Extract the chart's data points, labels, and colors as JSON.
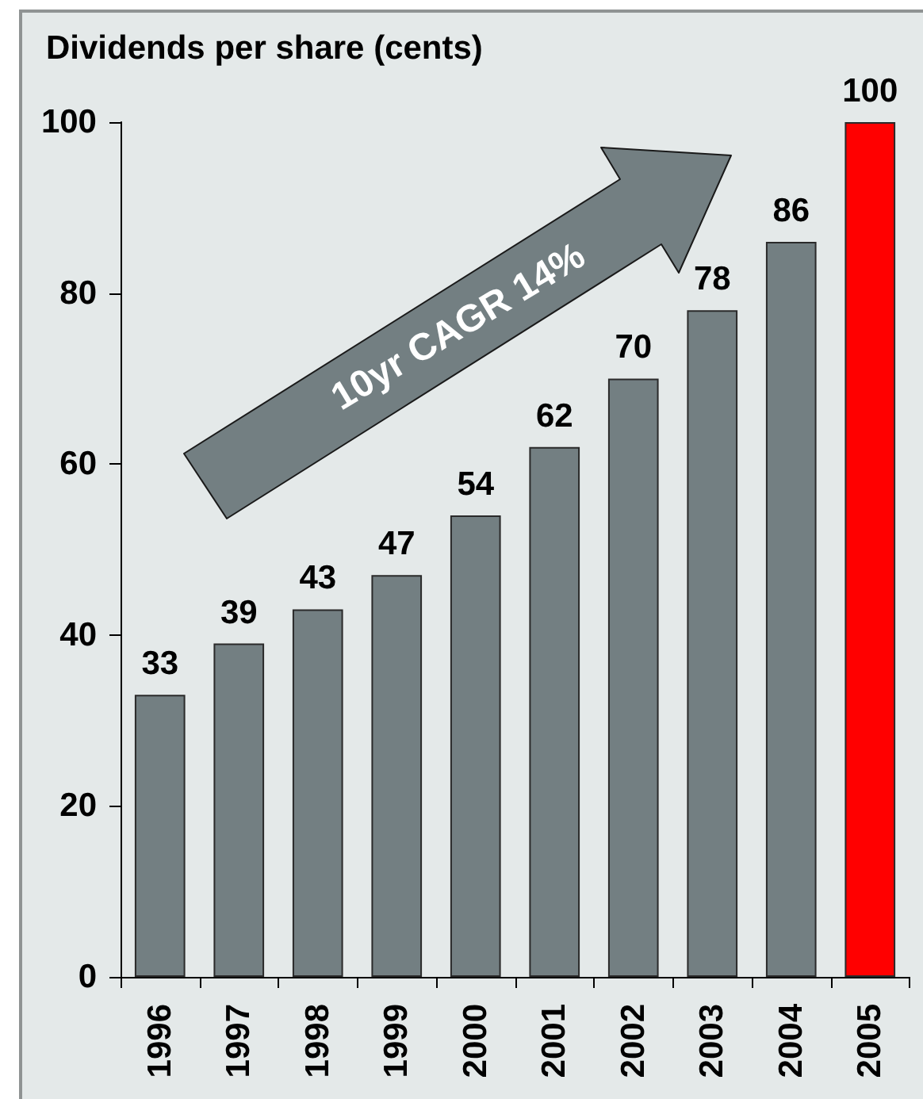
{
  "chart_data": {
    "type": "bar",
    "title": "Dividends per share (cents)",
    "categories": [
      "1996",
      "1997",
      "1998",
      "1999",
      "2000",
      "2001",
      "2002",
      "2003",
      "2004",
      "2005"
    ],
    "values": [
      33,
      39,
      43,
      47,
      54,
      62,
      70,
      78,
      86,
      100
    ],
    "colors": [
      "#737f82",
      "#737f82",
      "#737f82",
      "#737f82",
      "#737f82",
      "#737f82",
      "#737f82",
      "#737f82",
      "#737f82",
      "#ff0000"
    ],
    "ylim": [
      0,
      100
    ],
    "yticks": [
      0,
      20,
      40,
      60,
      80,
      100
    ],
    "grid": false,
    "data_labels": true,
    "annotations": [
      "10yr CAGR 14%"
    ]
  }
}
